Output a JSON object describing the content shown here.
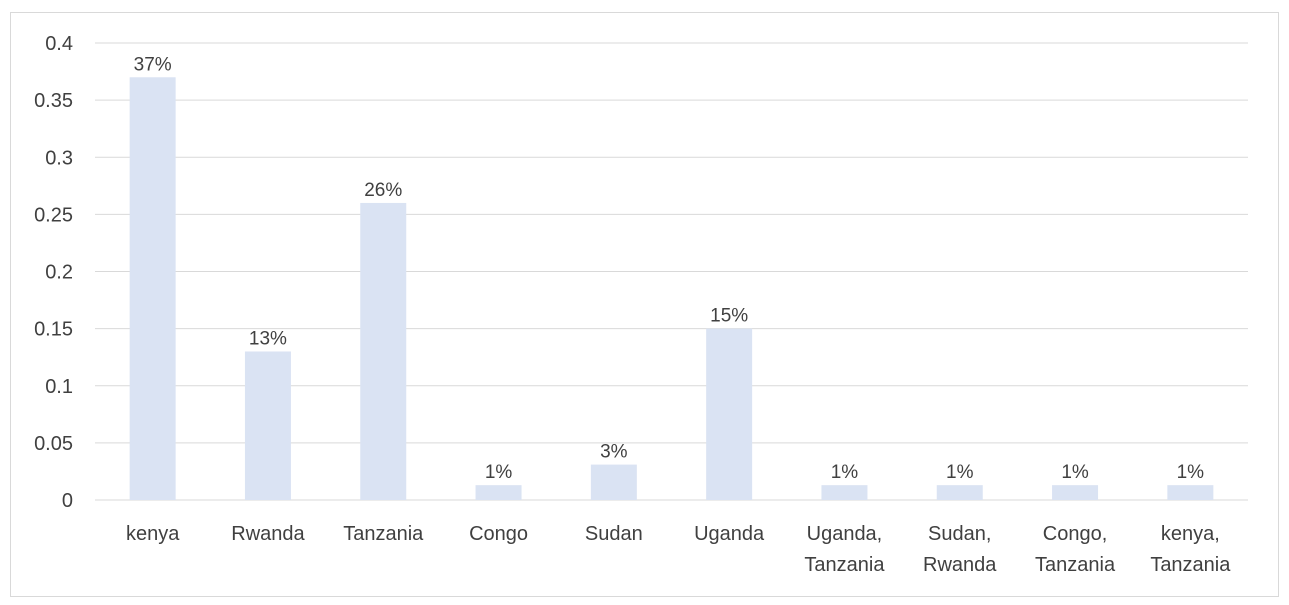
{
  "chart_data": {
    "type": "bar",
    "title": "",
    "xlabel": "",
    "ylabel": "",
    "categories": [
      [
        "kenya"
      ],
      [
        "Rwanda"
      ],
      [
        "Tanzania"
      ],
      [
        "Congo"
      ],
      [
        "Sudan"
      ],
      [
        "Uganda"
      ],
      [
        "Uganda,",
        "Tanzania"
      ],
      [
        "Sudan,",
        "Rwanda"
      ],
      [
        "Congo,",
        "Tanzania"
      ],
      [
        "kenya,",
        "Tanzania"
      ]
    ],
    "values": [
      0.37,
      0.13,
      0.26,
      0.013,
      0.031,
      0.15,
      0.013,
      0.013,
      0.013,
      0.013
    ],
    "data_labels": [
      "37%",
      "13%",
      "26%",
      "1%",
      "3%",
      "15%",
      "1%",
      "1%",
      "1%",
      "1%"
    ],
    "ylim": [
      0,
      0.4
    ],
    "yticks": [
      0,
      0.05,
      0.1,
      0.15,
      0.2,
      0.25,
      0.3,
      0.35,
      0.4
    ],
    "ytick_labels": [
      "0",
      "0.05",
      "0.1",
      "0.15",
      "0.2",
      "0.25",
      "0.3",
      "0.35",
      "0.4"
    ],
    "grid": true,
    "legend": "none",
    "colors": {
      "bar": "#dae3f3",
      "gridline": "#d9d9d9",
      "text": "#404040",
      "border": "#d9d9d9"
    }
  }
}
